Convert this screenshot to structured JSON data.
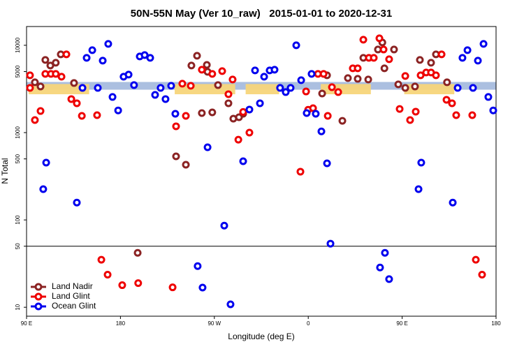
{
  "chart_data": {
    "type": "scatter",
    "title": "50N-55N May (Ver 10_raw)   2015-01-01 to 2020-12-31",
    "x_label": "Longitude (deg E)",
    "y_label": "N Total",
    "log_y": true,
    "panel_break": 50,
    "legend": "bottom-left",
    "xlim": [
      90,
      540
    ],
    "ylim": [
      7.9,
      16400
    ],
    "xticks": [
      {
        "value": 90,
        "label": "90 E"
      },
      {
        "value": 180,
        "label": "180"
      },
      {
        "value": 270,
        "label": "90 W"
      },
      {
        "value": 360,
        "label": "0"
      },
      {
        "value": 450,
        "label": "90 E"
      },
      {
        "value": 540,
        "label": "180"
      }
    ],
    "yticks": [
      10,
      50,
      100,
      500,
      1000,
      5000,
      10000
    ],
    "bands": [
      {
        "color": "#a6bcde",
        "range": [
          3100,
          3800
        ],
        "x": [
          [
            90,
            540
          ]
        ]
      },
      {
        "color": "#f7d57a",
        "range": [
          2750,
          3600
        ],
        "x": [
          [
            92,
            150
          ],
          [
            232,
            290
          ],
          [
            300,
            332
          ],
          [
            372,
            420
          ],
          [
            452,
            500
          ]
        ]
      }
    ],
    "series": [
      {
        "name": "Land Nadir",
        "color": "#8b2323",
        "x": [
          98,
          103.4,
          108,
          112.8,
          118,
          122.8,
          135.5,
          196.5,
          233.3,
          242.7,
          248,
          253.4,
          258,
          262.8,
          263.5,
          268,
          273.5,
          283.5,
          288.2,
          293.6,
          297.6,
          373.3,
          378,
          392.7,
          398,
          407.4,
          412.8,
          417.5,
          426.8,
          431,
          433,
          442.2,
          446.3,
          453,
          462.3,
          467,
          477.7,
          482.4,
          493
        ],
        "values": [
          3767,
          3373,
          6792,
          5861,
          6310,
          7870,
          3698,
          42,
          535,
          429,
          5861,
          7586,
          1675,
          5957,
          4966,
          1706,
          3499,
          2168,
          1445,
          1500,
          1644,
          2805,
          4529,
          1365,
          4207,
          4130,
          7178,
          4055,
          8946,
          10768,
          5445,
          8946,
          3565,
          3251,
          3373,
          6792,
          6310,
          7870,
          3767
        ]
      },
      {
        "name": "Land Glint",
        "color": "#ee0000",
        "x": [
          93.3,
          93.3,
          98,
          103.4,
          108,
          113.4,
          118,
          123.5,
          128.2,
          132.9,
          138.2,
          143,
          157.6,
          161.7,
          167.7,
          181.7,
          197,
          230,
          233.3,
          239.3,
          242.7,
          247.4,
          258,
          268,
          277.5,
          283.5,
          287.5,
          293,
          297.6,
          303.6,
          352.5,
          357.9,
          359.9,
          364.6,
          369.3,
          374.7,
          378.7,
          382.7,
          388.7,
          402.7,
          407.4,
          412.8,
          418.1,
          422.8,
          428.2,
          432.2,
          437.5,
          447.6,
          453,
          457.6,
          463,
          467.7,
          473,
          477.7,
          482.4,
          487.8,
          492.5,
          497.8,
          501.8,
          517.2,
          520.6,
          526.6
        ],
        "values": [
          4529,
          3251,
          1392,
          1767,
          4699,
          4699,
          4699,
          4365,
          7870,
          2421,
          2168,
          1555,
          1585,
          35,
          23.6,
          17.9,
          18.9,
          16.9,
          1181,
          3631,
          1555,
          3436,
          5248,
          4699,
          5058,
          2754,
          4055,
          830,
          1723,
          1000,
          357,
          2958,
          1828,
          1905,
          4699,
          4699,
          1555,
          3311,
          2911,
          5445,
          5445,
          11588,
          7178,
          7178,
          12023,
          8946,
          6918,
          1866,
          4446,
          1392,
          1738,
          4529,
          4875,
          4875,
          4529,
          7870,
          2377,
          2168,
          1585,
          1585,
          35,
          23.6
        ]
      },
      {
        "name": "Ocean Glint",
        "color": "#0000ee",
        "x": [
          106,
          108.8,
          138.2,
          143.6,
          147.6,
          153,
          158.3,
          163,
          168.3,
          172.4,
          177.8,
          183,
          187.8,
          193,
          198.5,
          203.2,
          208.5,
          213.2,
          218.5,
          223.2,
          228.6,
          232.6,
          254,
          258.7,
          263.5,
          279.5,
          285.5,
          297.6,
          303.6,
          309,
          313.7,
          317.7,
          323,
          327.7,
          333,
          338.4,
          343.1,
          348.5,
          353.2,
          358.5,
          363.2,
          367.2,
          372.6,
          378,
          381.3,
          428.8,
          433.5,
          437.5,
          465.7,
          468.3,
          498.5,
          503.2,
          507.8,
          512.6,
          517.9,
          522.6,
          528,
          532.6,
          537.3
        ],
        "values": [
          225,
          453,
          158,
          3251,
          7178,
          8790,
          3251,
          6668,
          10375,
          2559,
          1795,
          4365,
          4613,
          3499,
          7447,
          7727,
          7178,
          2704,
          3251,
          2421,
          3436,
          1644,
          29.6,
          16.8,
          679,
          86,
          10.8,
          470,
          1837,
          5152,
          2168,
          4365,
          5152,
          5248,
          3251,
          2911,
          3251,
          10000,
          3981,
          1675,
          4699,
          1644,
          1033,
          445,
          53.5,
          28.5,
          42,
          21,
          225,
          453,
          158,
          3251,
          7178,
          8790,
          3251,
          6668,
          10375,
          2559,
          1795
        ]
      }
    ]
  }
}
